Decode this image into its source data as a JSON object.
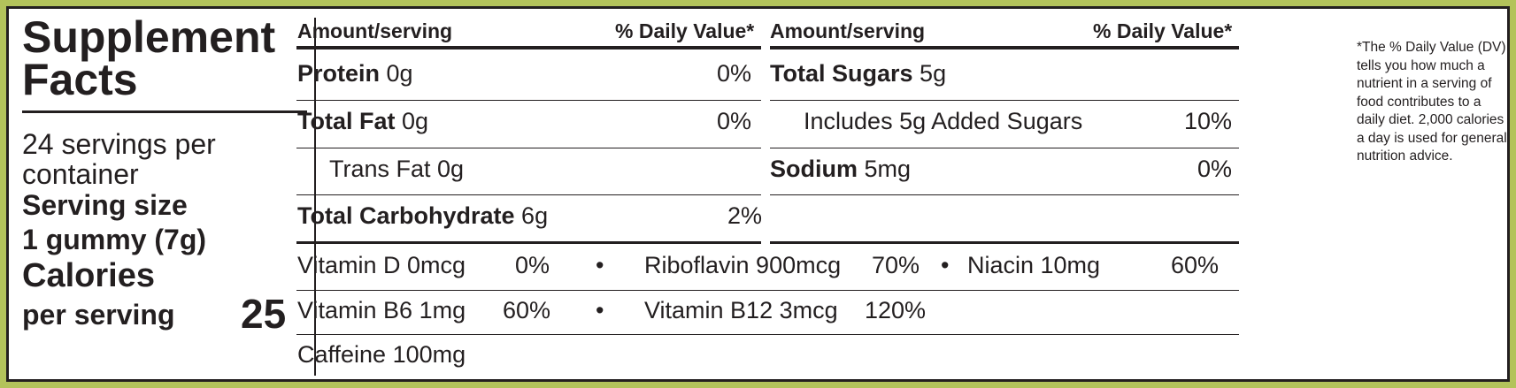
{
  "title": [
    "Supplement",
    "Facts"
  ],
  "servings_per_container": [
    "24 servings per",
    "container"
  ],
  "serving_size_label": "Serving size",
  "serving_size_value": "1 gummy (7g)",
  "calories_label": [
    "Calories",
    "per serving"
  ],
  "calories_value": "25",
  "header": {
    "amount": "Amount/serving",
    "dv": "% Daily Value*"
  },
  "left_rows": [
    {
      "name": "Protein",
      "amount": "0g",
      "dv": "0%"
    },
    {
      "name": "Total Fat",
      "amount": "0g",
      "dv": "0%"
    },
    {
      "name": "Trans Fat 0g",
      "amount": "",
      "dv": ""
    },
    {
      "name": "Total Carbohydrate",
      "amount": "6g",
      "dv": "2%"
    }
  ],
  "right_rows": [
    {
      "name": "Total Sugars",
      "amount": "5g",
      "dv": ""
    },
    {
      "name": "Includes 5g Added Sugars",
      "amount": "",
      "dv": "10%"
    },
    {
      "name": "Sodium",
      "amount": "5mg",
      "dv": "0%"
    }
  ],
  "vitamins": [
    [
      {
        "name": "Vitamin D 0mcg",
        "dv": "0%"
      },
      {
        "name": "Riboflavin 900mcg",
        "dv": "70%"
      },
      {
        "name": "Niacin 10mg",
        "dv": "60%"
      }
    ],
    [
      {
        "name": "Vitamin B6 1mg",
        "dv": "60%"
      },
      {
        "name": "Vitamin B12 3mcg",
        "dv": "120%"
      }
    ]
  ],
  "bullet": "•",
  "caffeine": "Caffeine 100mg",
  "footnote": "*The % Daily Value (DV) tells you how much a nutrient in a serving of food contributes to a daily diet. 2,000 calories a day is used for general nutrition advice.",
  "colors": {
    "border": "#b3c35b",
    "ink": "#231f20"
  }
}
